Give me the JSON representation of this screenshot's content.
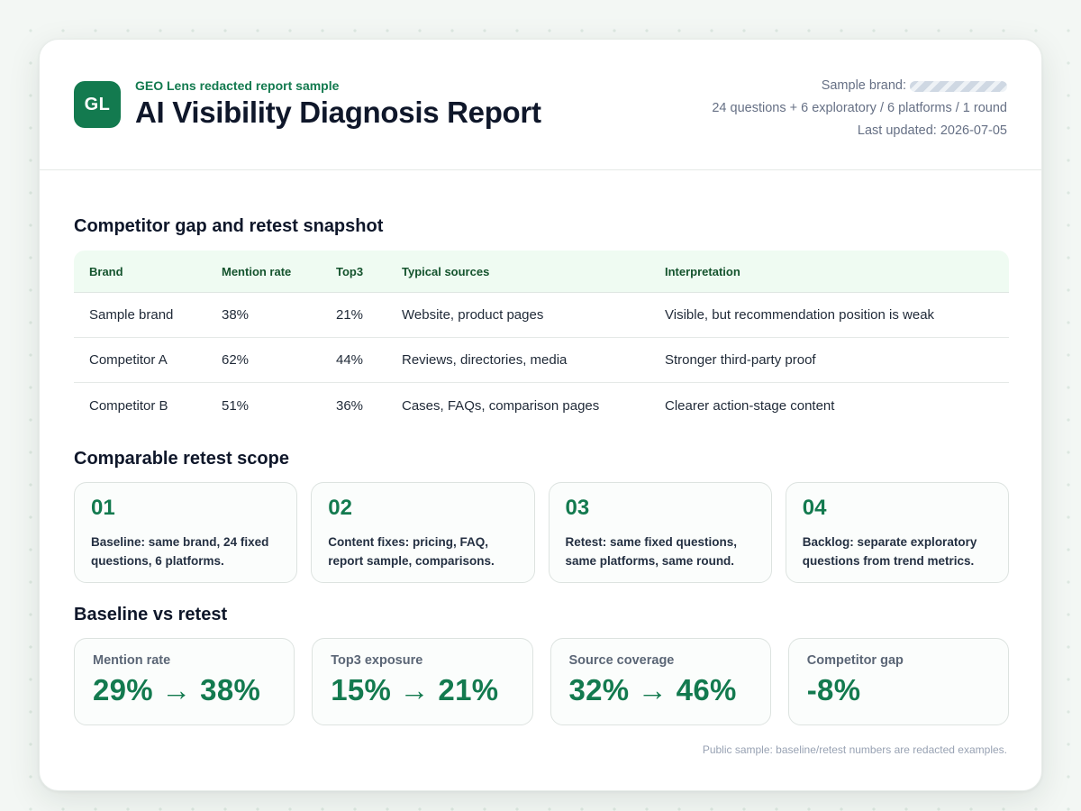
{
  "header": {
    "logo_text": "GL",
    "eyebrow": "GEO Lens redacted report sample",
    "title": "AI Visibility Diagnosis Report",
    "sample_brand_label": "Sample brand:",
    "scope_line": "24 questions + 6 exploratory / 6 platforms / 1 round",
    "updated_line": "Last updated: 2026-07-05"
  },
  "competitor_section": {
    "title": "Competitor gap and retest snapshot",
    "columns": [
      "Brand",
      "Mention rate",
      "Top3",
      "Typical sources",
      "Interpretation"
    ],
    "rows": [
      [
        "Sample brand",
        "38%",
        "21%",
        "Website, product pages",
        "Visible, but recommendation position is weak"
      ],
      [
        "Competitor A",
        "62%",
        "44%",
        "Reviews, directories, media",
        "Stronger third-party proof"
      ],
      [
        "Competitor B",
        "51%",
        "36%",
        "Cases, FAQs, comparison pages",
        "Clearer action-stage content"
      ]
    ]
  },
  "scope_section": {
    "title": "Comparable retest scope",
    "steps": [
      {
        "num": "01",
        "text": "Baseline: same brand, 24 fixed questions, 6 platforms."
      },
      {
        "num": "02",
        "text": "Content fixes: pricing, FAQ, report sample, comparisons."
      },
      {
        "num": "03",
        "text": "Retest: same fixed questions, same platforms, same round."
      },
      {
        "num": "04",
        "text": "Backlog: separate exploratory questions from trend metrics."
      }
    ]
  },
  "retest_section": {
    "title": "Baseline vs retest",
    "metrics": [
      {
        "label": "Mention rate",
        "value": "29% → 38%"
      },
      {
        "label": "Top3 exposure",
        "value": "15% → 21%"
      },
      {
        "label": "Source coverage",
        "value": "32% → 46%"
      },
      {
        "label": "Competitor gap",
        "value": "-8%"
      }
    ]
  },
  "footnote": "Public sample: baseline/retest numbers are redacted examples.",
  "colors": {
    "accent": "#137a4f",
    "table_header_bg": "#effbf2",
    "page_bg": "#f3f7f4"
  }
}
